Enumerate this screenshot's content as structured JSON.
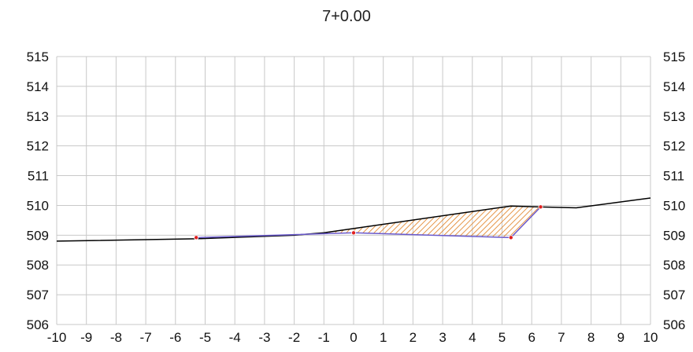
{
  "chart_data": {
    "type": "line",
    "title": "7+0.00",
    "xlim": [
      -10,
      10
    ],
    "ylim": [
      506,
      515
    ],
    "x_ticks": [
      "-10",
      "-9",
      "-8",
      "-7",
      "-6",
      "-5",
      "-4",
      "-3",
      "-2",
      "-1",
      "0",
      "1",
      "2",
      "3",
      "4",
      "5",
      "6",
      "7",
      "8",
      "9",
      "10"
    ],
    "y_ticks": [
      "506",
      "507",
      "508",
      "509",
      "510",
      "511",
      "512",
      "513",
      "514",
      "515"
    ],
    "grid": true,
    "y_axis_both_sides": true,
    "series": [
      {
        "role": "ground",
        "color": "#000000",
        "points": [
          [
            -10,
            508.8
          ],
          [
            -5.3,
            508.88
          ],
          [
            -2,
            509.0
          ],
          [
            -1,
            509.08
          ],
          [
            5.3,
            509.98
          ],
          [
            6.3,
            509.95
          ],
          [
            7.5,
            509.92
          ],
          [
            10,
            510.25
          ]
        ]
      },
      {
        "role": "design",
        "color": "#6a5acd",
        "points": [
          [
            -5.3,
            508.92
          ],
          [
            0,
            509.08
          ],
          [
            5.3,
            508.92
          ],
          [
            6.3,
            509.95
          ]
        ]
      }
    ],
    "fill_region": {
      "pattern": "diagonal-hatch",
      "color": "#e07b1a",
      "points": [
        [
          -1,
          509.08
        ],
        [
          0,
          509.2
        ],
        [
          5.3,
          509.98
        ],
        [
          6.3,
          509.95
        ],
        [
          5.3,
          508.92
        ],
        [
          0,
          509.08
        ]
      ]
    },
    "markers": {
      "color": "#e02020",
      "points": [
        [
          -5.3,
          508.92
        ],
        [
          0,
          509.08
        ],
        [
          5.3,
          508.92
        ],
        [
          6.3,
          509.95
        ]
      ]
    }
  }
}
